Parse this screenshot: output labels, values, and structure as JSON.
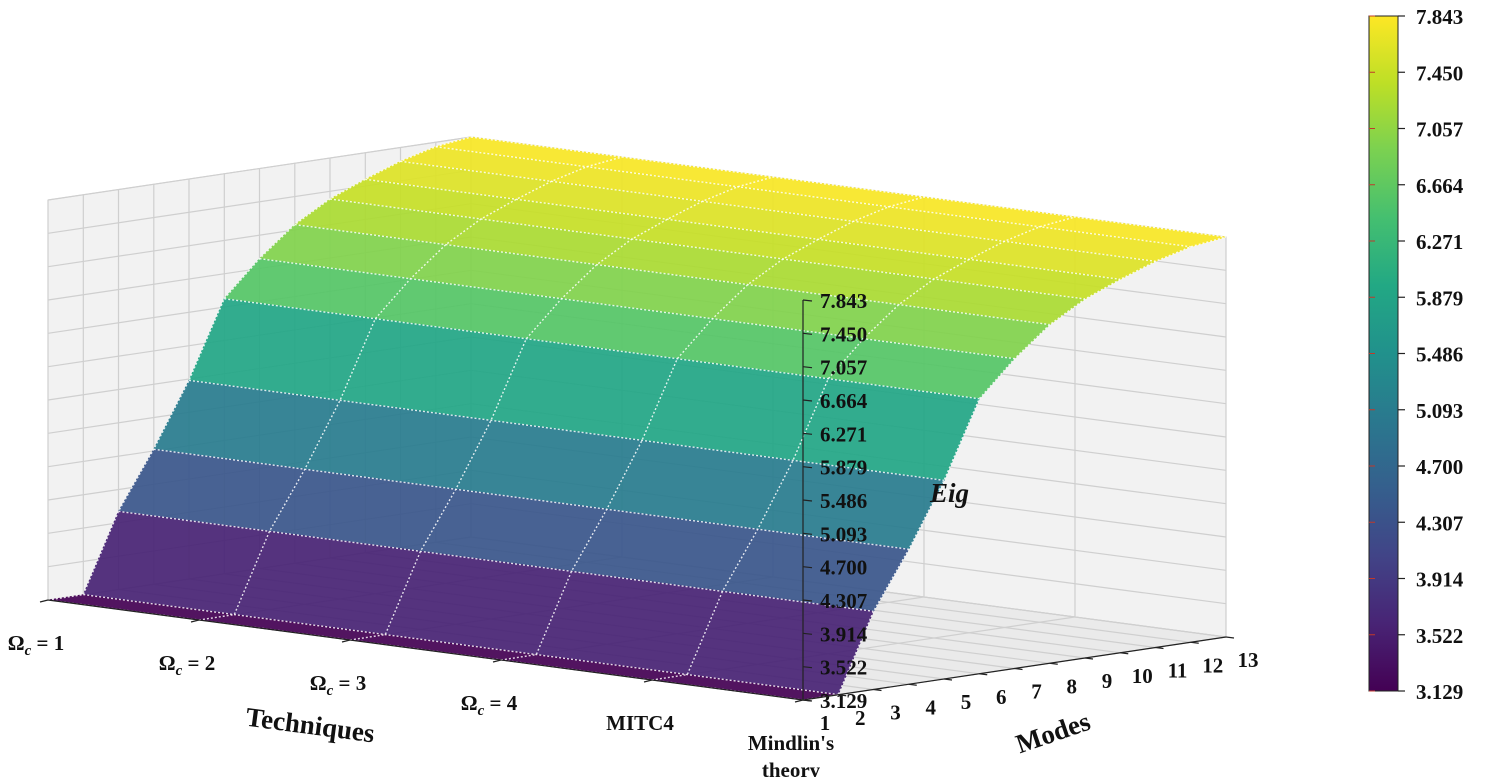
{
  "chart_data": {
    "type": "surface3d",
    "title": "",
    "colormap": "viridis",
    "grid": true,
    "x_axis": {
      "label": "Techniques",
      "categories": [
        "Ω",
        "Ω",
        "Ω",
        "Ω",
        "MITC4",
        "Mindlin's theory"
      ],
      "category_labels": [
        {
          "symbol": "Ω",
          "subscript": "c",
          "suffix": " = 1"
        },
        {
          "symbol": "Ω",
          "subscript": "c",
          "suffix": " = 2"
        },
        {
          "symbol": "Ω",
          "subscript": "c",
          "suffix": " = 3"
        },
        {
          "symbol": "Ω",
          "subscript": "c",
          "suffix": " = 4"
        },
        {
          "text": "MITC4"
        },
        {
          "text": "Mindlin's",
          "line2": "theory"
        }
      ]
    },
    "y_axis": {
      "label": "Modes",
      "ticks": [
        "1",
        "2",
        "3",
        "4",
        "5",
        "6",
        "7",
        "8",
        "9",
        "10",
        "11",
        "12",
        "13"
      ]
    },
    "z_axis": {
      "label": "Eig",
      "range": [
        3.129,
        7.843
      ],
      "ticks": [
        "3.129",
        "3.522",
        "3.914",
        "4.307",
        "4.700",
        "5.093",
        "5.486",
        "5.879",
        "6.271",
        "6.664",
        "7.057",
        "7.450",
        "7.843"
      ]
    },
    "colorbar": {
      "range": [
        3.129,
        7.843
      ],
      "ticks": [
        "3.129",
        "3.522",
        "3.914",
        "4.307",
        "4.700",
        "5.093",
        "5.486",
        "5.879",
        "6.271",
        "6.664",
        "7.057",
        "7.450",
        "7.843"
      ]
    },
    "modes": [
      1,
      2,
      3,
      4,
      5,
      6,
      7,
      8,
      9,
      10,
      11,
      12,
      13
    ],
    "eig_by_mode": [
      3.129,
      3.131,
      4.05,
      4.72,
      5.47,
      6.37,
      6.78,
      7.12,
      7.36,
      7.53,
      7.68,
      7.79,
      7.843
    ]
  }
}
